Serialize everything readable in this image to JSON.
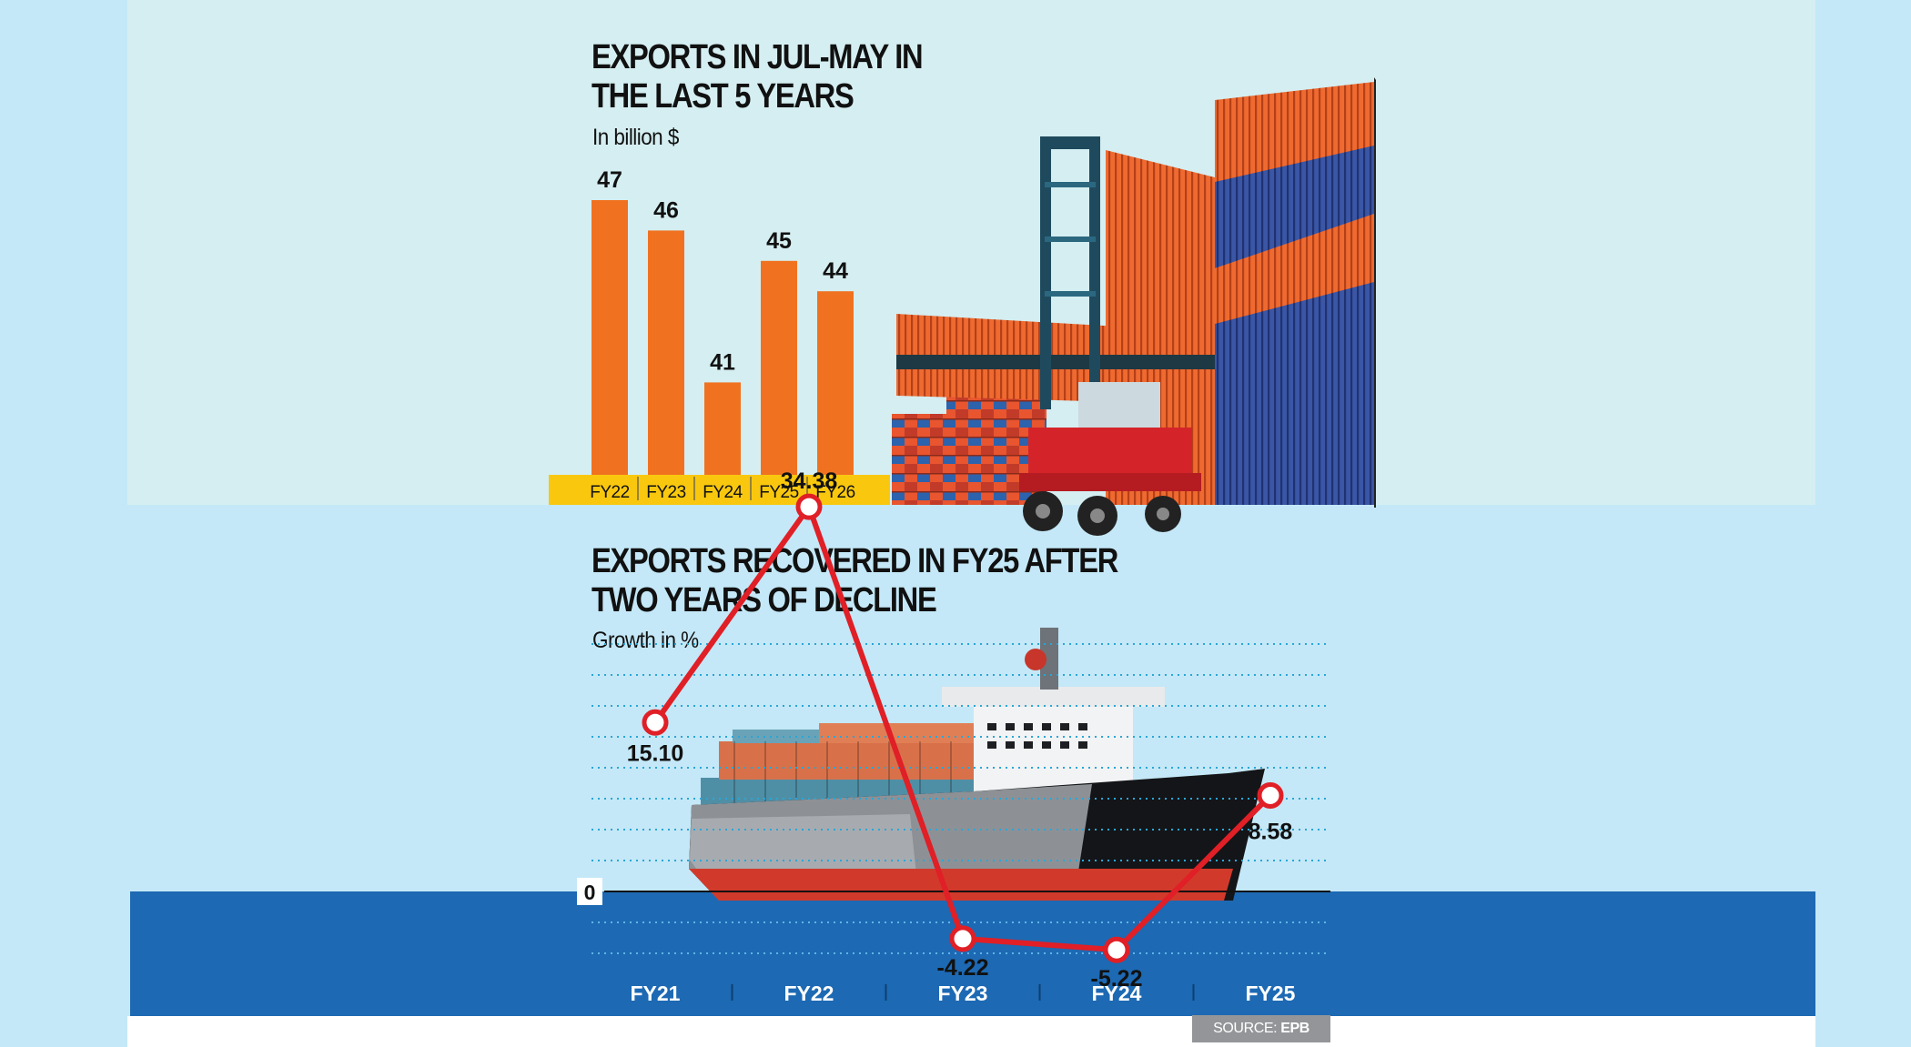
{
  "bar_chart_section": {
    "title_line1": "EXPORTS IN JUL-MAY IN",
    "title_line2": "THE LAST 5 YEARS",
    "subtitle": "In billion $"
  },
  "line_chart_section": {
    "title_line1": "EXPORTS RECOVERED IN FY25 AFTER",
    "title_line2": "TWO YEARS OF DECLINE",
    "subtitle": "Growth in %",
    "zero_label": "0"
  },
  "source": {
    "label": "SOURCE:",
    "value": "EPB"
  },
  "colors": {
    "bar": "#f07220",
    "axis_band": "#f9c80e",
    "line": "#e01f26",
    "sea": "#1d69b3",
    "sky": "#c4e8f7",
    "top_panel": "#d5eef1",
    "grid": "#2aa6d6"
  },
  "chart_data": [
    {
      "type": "bar",
      "title": "EXPORTS IN JUL-MAY IN THE LAST 5 YEARS",
      "ylabel": "In billion $",
      "categories": [
        "FY22",
        "FY23",
        "FY24",
        "FY25",
        "FY26"
      ],
      "values": [
        47,
        46,
        41,
        45,
        44
      ],
      "value_labels": [
        "47",
        "46",
        "41",
        "45",
        "44"
      ],
      "grid": false
    },
    {
      "type": "line",
      "title": "EXPORTS RECOVERED IN FY25 AFTER TWO YEARS OF DECLINE",
      "ylabel": "Growth in %",
      "categories": [
        "FY21",
        "FY22",
        "FY23",
        "FY24",
        "FY25"
      ],
      "values": [
        15.1,
        34.38,
        -4.22,
        -5.22,
        8.58
      ],
      "value_labels": [
        "15.10",
        "34.38",
        "-4.22",
        "-5.22",
        "8.58"
      ],
      "ylim": [
        -10,
        40
      ],
      "grid": true
    }
  ]
}
